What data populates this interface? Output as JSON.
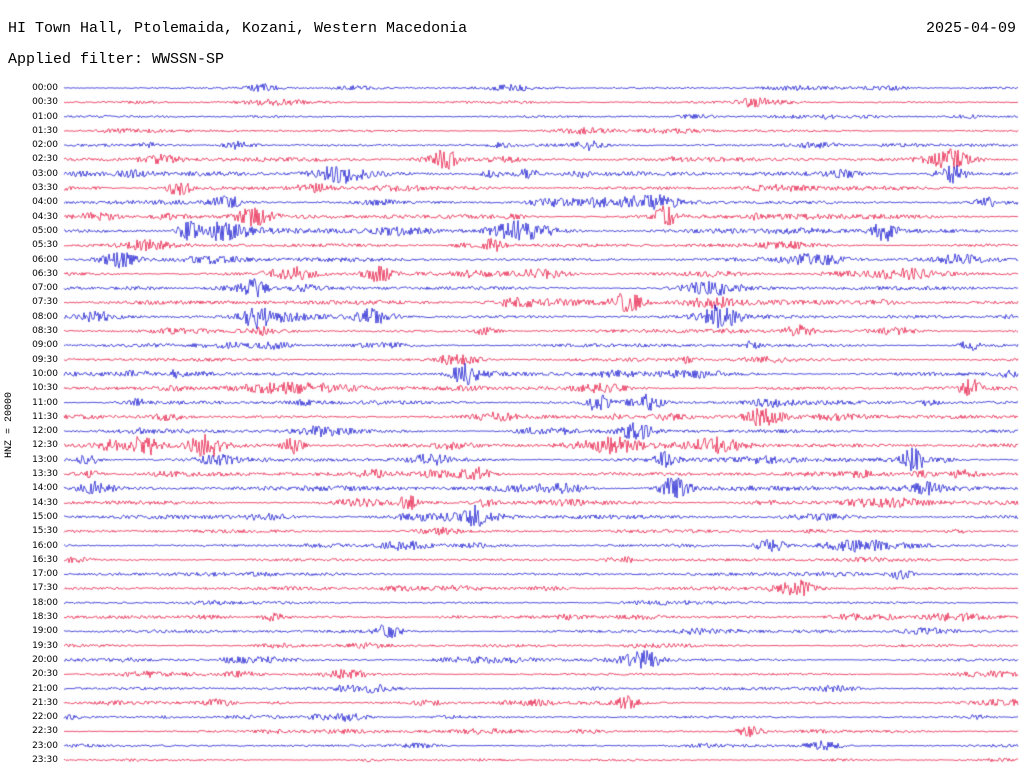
{
  "header": {
    "station_title": "HI Town Hall, Ptolemaida, Kozani, Western Macedonia",
    "date": "2025-04-09",
    "filter_label": "Applied filter: WWSSN-SP"
  },
  "axis": {
    "scale_label": "HNZ = 20000"
  },
  "chart_data": {
    "type": "line",
    "subtype": "helicorder-seismogram-dayplot",
    "title": "HI Town Hall, Ptolemaida, Kozani, Western Macedonia",
    "date": "2025-04-09",
    "filter": "WWSSN-SP",
    "channel": "HNZ",
    "scale": 20000,
    "row_interval_minutes": 30,
    "rows_per_day": 48,
    "trace_colors": {
      "even": "#0000cc",
      "odd": "#e40032"
    },
    "rows": [
      {
        "label": "00:00",
        "activity": 0.35,
        "events": [
          0.21
        ]
      },
      {
        "label": "00:30",
        "activity": 0.4,
        "events": [
          0.72
        ]
      },
      {
        "label": "01:00",
        "activity": 0.4,
        "events": []
      },
      {
        "label": "01:30",
        "activity": 0.45,
        "events": []
      },
      {
        "label": "02:00",
        "activity": 0.5,
        "events": [
          0.55
        ]
      },
      {
        "label": "02:30",
        "activity": 0.75,
        "events": [
          0.4,
          0.93
        ]
      },
      {
        "label": "03:00",
        "activity": 0.8,
        "events": [
          0.29,
          0.93
        ]
      },
      {
        "label": "03:30",
        "activity": 0.75,
        "events": [
          0.12
        ]
      },
      {
        "label": "04:00",
        "activity": 0.8,
        "events": [
          0.17
        ]
      },
      {
        "label": "04:30",
        "activity": 0.85,
        "events": [
          0.2,
          0.63
        ]
      },
      {
        "label": "05:00",
        "activity": 0.85,
        "events": [
          0.13,
          0.86
        ]
      },
      {
        "label": "05:30",
        "activity": 0.7,
        "events": [
          0.45
        ]
      },
      {
        "label": "06:00",
        "activity": 0.75,
        "events": [
          0.06
        ]
      },
      {
        "label": "06:30",
        "activity": 0.75,
        "events": [
          0.33
        ]
      },
      {
        "label": "07:00",
        "activity": 0.75,
        "events": [
          0.2
        ]
      },
      {
        "label": "07:30",
        "activity": 0.85,
        "events": [
          0.59
        ]
      },
      {
        "label": "08:00",
        "activity": 0.75,
        "events": [
          0.2,
          0.69
        ]
      },
      {
        "label": "08:30",
        "activity": 0.6,
        "events": [
          0.77
        ]
      },
      {
        "label": "09:00",
        "activity": 0.65,
        "events": [
          0.95
        ]
      },
      {
        "label": "09:30",
        "activity": 0.6,
        "events": [
          0.42
        ]
      },
      {
        "label": "10:00",
        "activity": 0.75,
        "events": [
          0.42
        ]
      },
      {
        "label": "10:30",
        "activity": 0.7,
        "events": [
          0.95
        ]
      },
      {
        "label": "11:00",
        "activity": 0.8,
        "events": [
          0.56,
          0.61
        ]
      },
      {
        "label": "11:30",
        "activity": 0.7,
        "events": [
          0.73
        ]
      },
      {
        "label": "12:00",
        "activity": 0.7,
        "events": [
          0.6
        ]
      },
      {
        "label": "12:30",
        "activity": 0.95,
        "events": [
          0.09,
          0.15,
          0.24
        ]
      },
      {
        "label": "13:00",
        "activity": 0.8,
        "events": [
          0.63,
          0.89
        ]
      },
      {
        "label": "13:30",
        "activity": 0.85,
        "events": [
          0.43
        ]
      },
      {
        "label": "14:00",
        "activity": 0.95,
        "events": [
          0.64
        ]
      },
      {
        "label": "14:30",
        "activity": 0.75,
        "events": [
          0.36
        ]
      },
      {
        "label": "15:00",
        "activity": 0.7,
        "events": [
          0.43
        ]
      },
      {
        "label": "15:30",
        "activity": 0.6,
        "events": []
      },
      {
        "label": "16:00",
        "activity": 0.6,
        "events": [
          0.74
        ]
      },
      {
        "label": "16:30",
        "activity": 0.5,
        "events": []
      },
      {
        "label": "17:00",
        "activity": 0.55,
        "events": []
      },
      {
        "label": "17:30",
        "activity": 0.6,
        "events": [
          0.77
        ]
      },
      {
        "label": "18:00",
        "activity": 0.5,
        "events": []
      },
      {
        "label": "18:30",
        "activity": 0.55,
        "events": [
          0.22
        ]
      },
      {
        "label": "19:00",
        "activity": 0.6,
        "events": [
          0.34
        ]
      },
      {
        "label": "19:30",
        "activity": 0.5,
        "events": []
      },
      {
        "label": "20:00",
        "activity": 0.55,
        "events": [
          0.61
        ]
      },
      {
        "label": "20:30",
        "activity": 0.45,
        "events": [
          0.3
        ]
      },
      {
        "label": "21:00",
        "activity": 0.5,
        "events": []
      },
      {
        "label": "21:30",
        "activity": 0.55,
        "events": [
          0.59
        ]
      },
      {
        "label": "22:00",
        "activity": 0.4,
        "events": [
          0.3
        ]
      },
      {
        "label": "22:30",
        "activity": 0.45,
        "events": [
          0.72
        ]
      },
      {
        "label": "23:00",
        "activity": 0.4,
        "events": [
          0.8
        ]
      },
      {
        "label": "23:30",
        "activity": 0.35,
        "events": []
      }
    ]
  }
}
